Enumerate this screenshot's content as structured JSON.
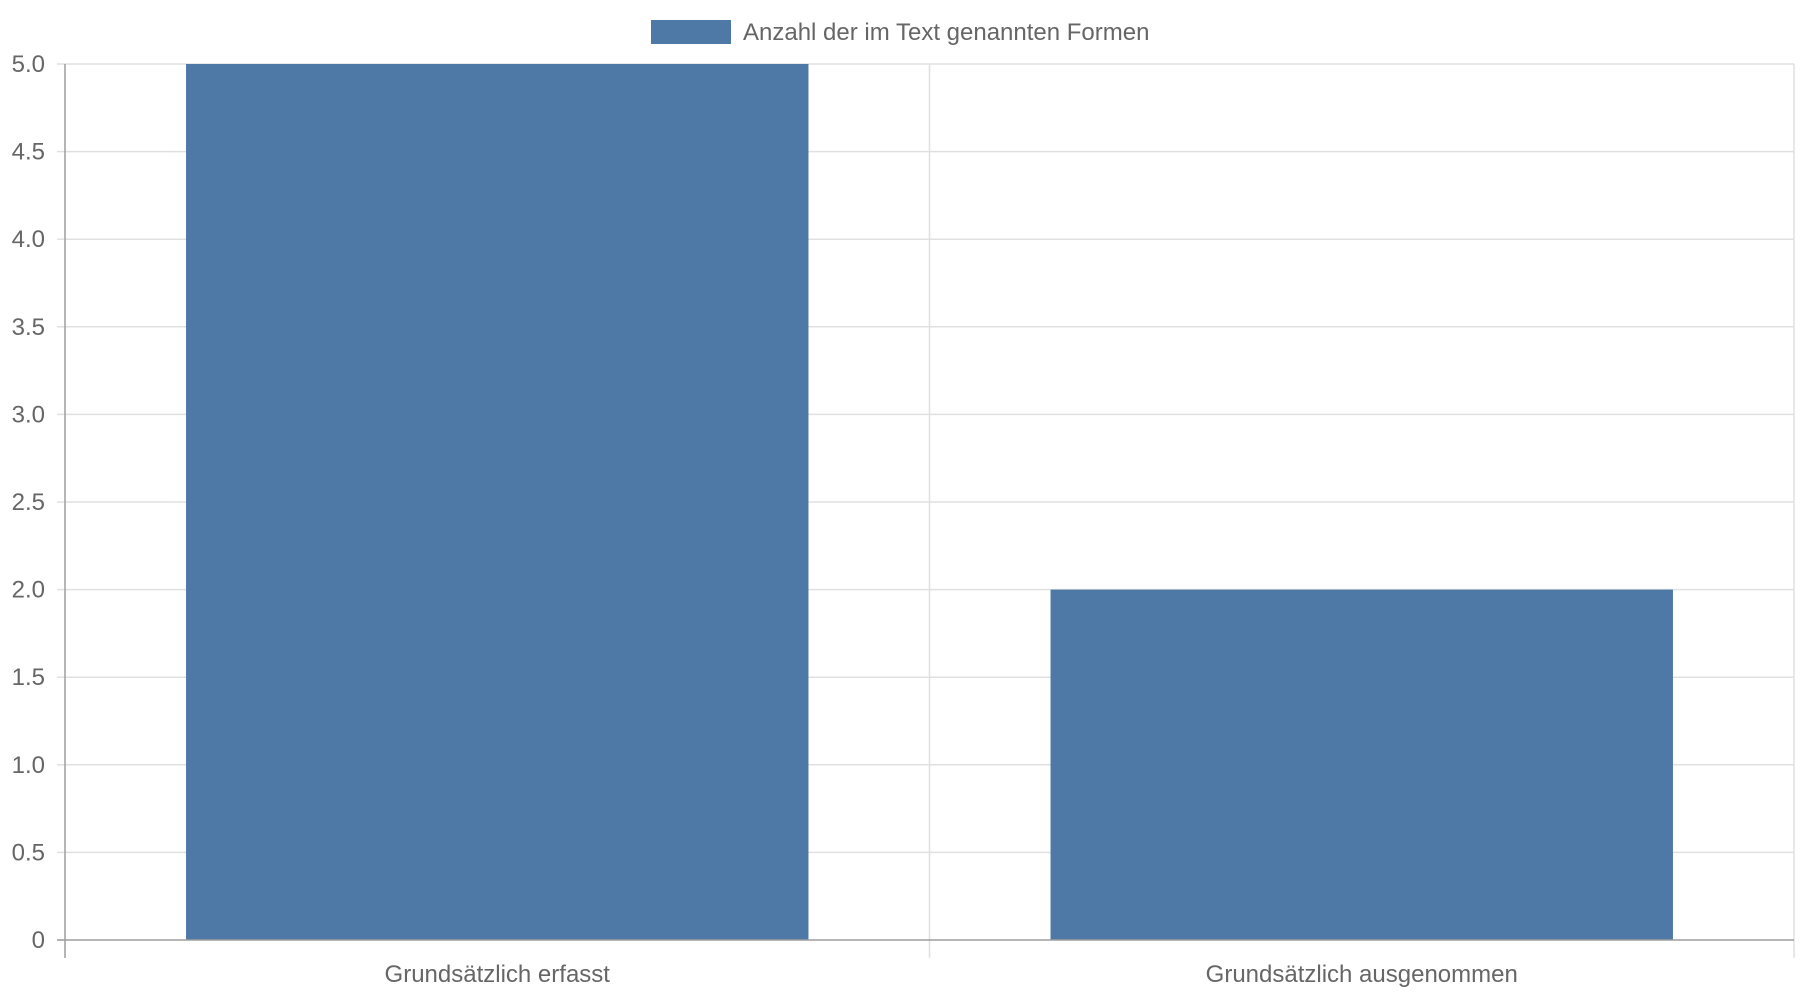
{
  "chart_data": {
    "type": "bar",
    "categories": [
      "Grundsätzlich erfasst",
      "Grundsätzlich ausgenommen"
    ],
    "series": [
      {
        "name": "Anzahl der im Text genannten Formen",
        "values": [
          5,
          2
        ],
        "color": "#4e79a7"
      }
    ],
    "yticks": [
      "0",
      "0.5",
      "1.0",
      "1.5",
      "2.0",
      "2.5",
      "3.0",
      "3.5",
      "4.0",
      "4.5",
      "5.0"
    ],
    "ylim": [
      0,
      5
    ],
    "grid": true,
    "legend": "top-center",
    "colors": {
      "grid": "#e0e0e0",
      "axis": "#9e9e9e",
      "text": "#666666"
    }
  }
}
